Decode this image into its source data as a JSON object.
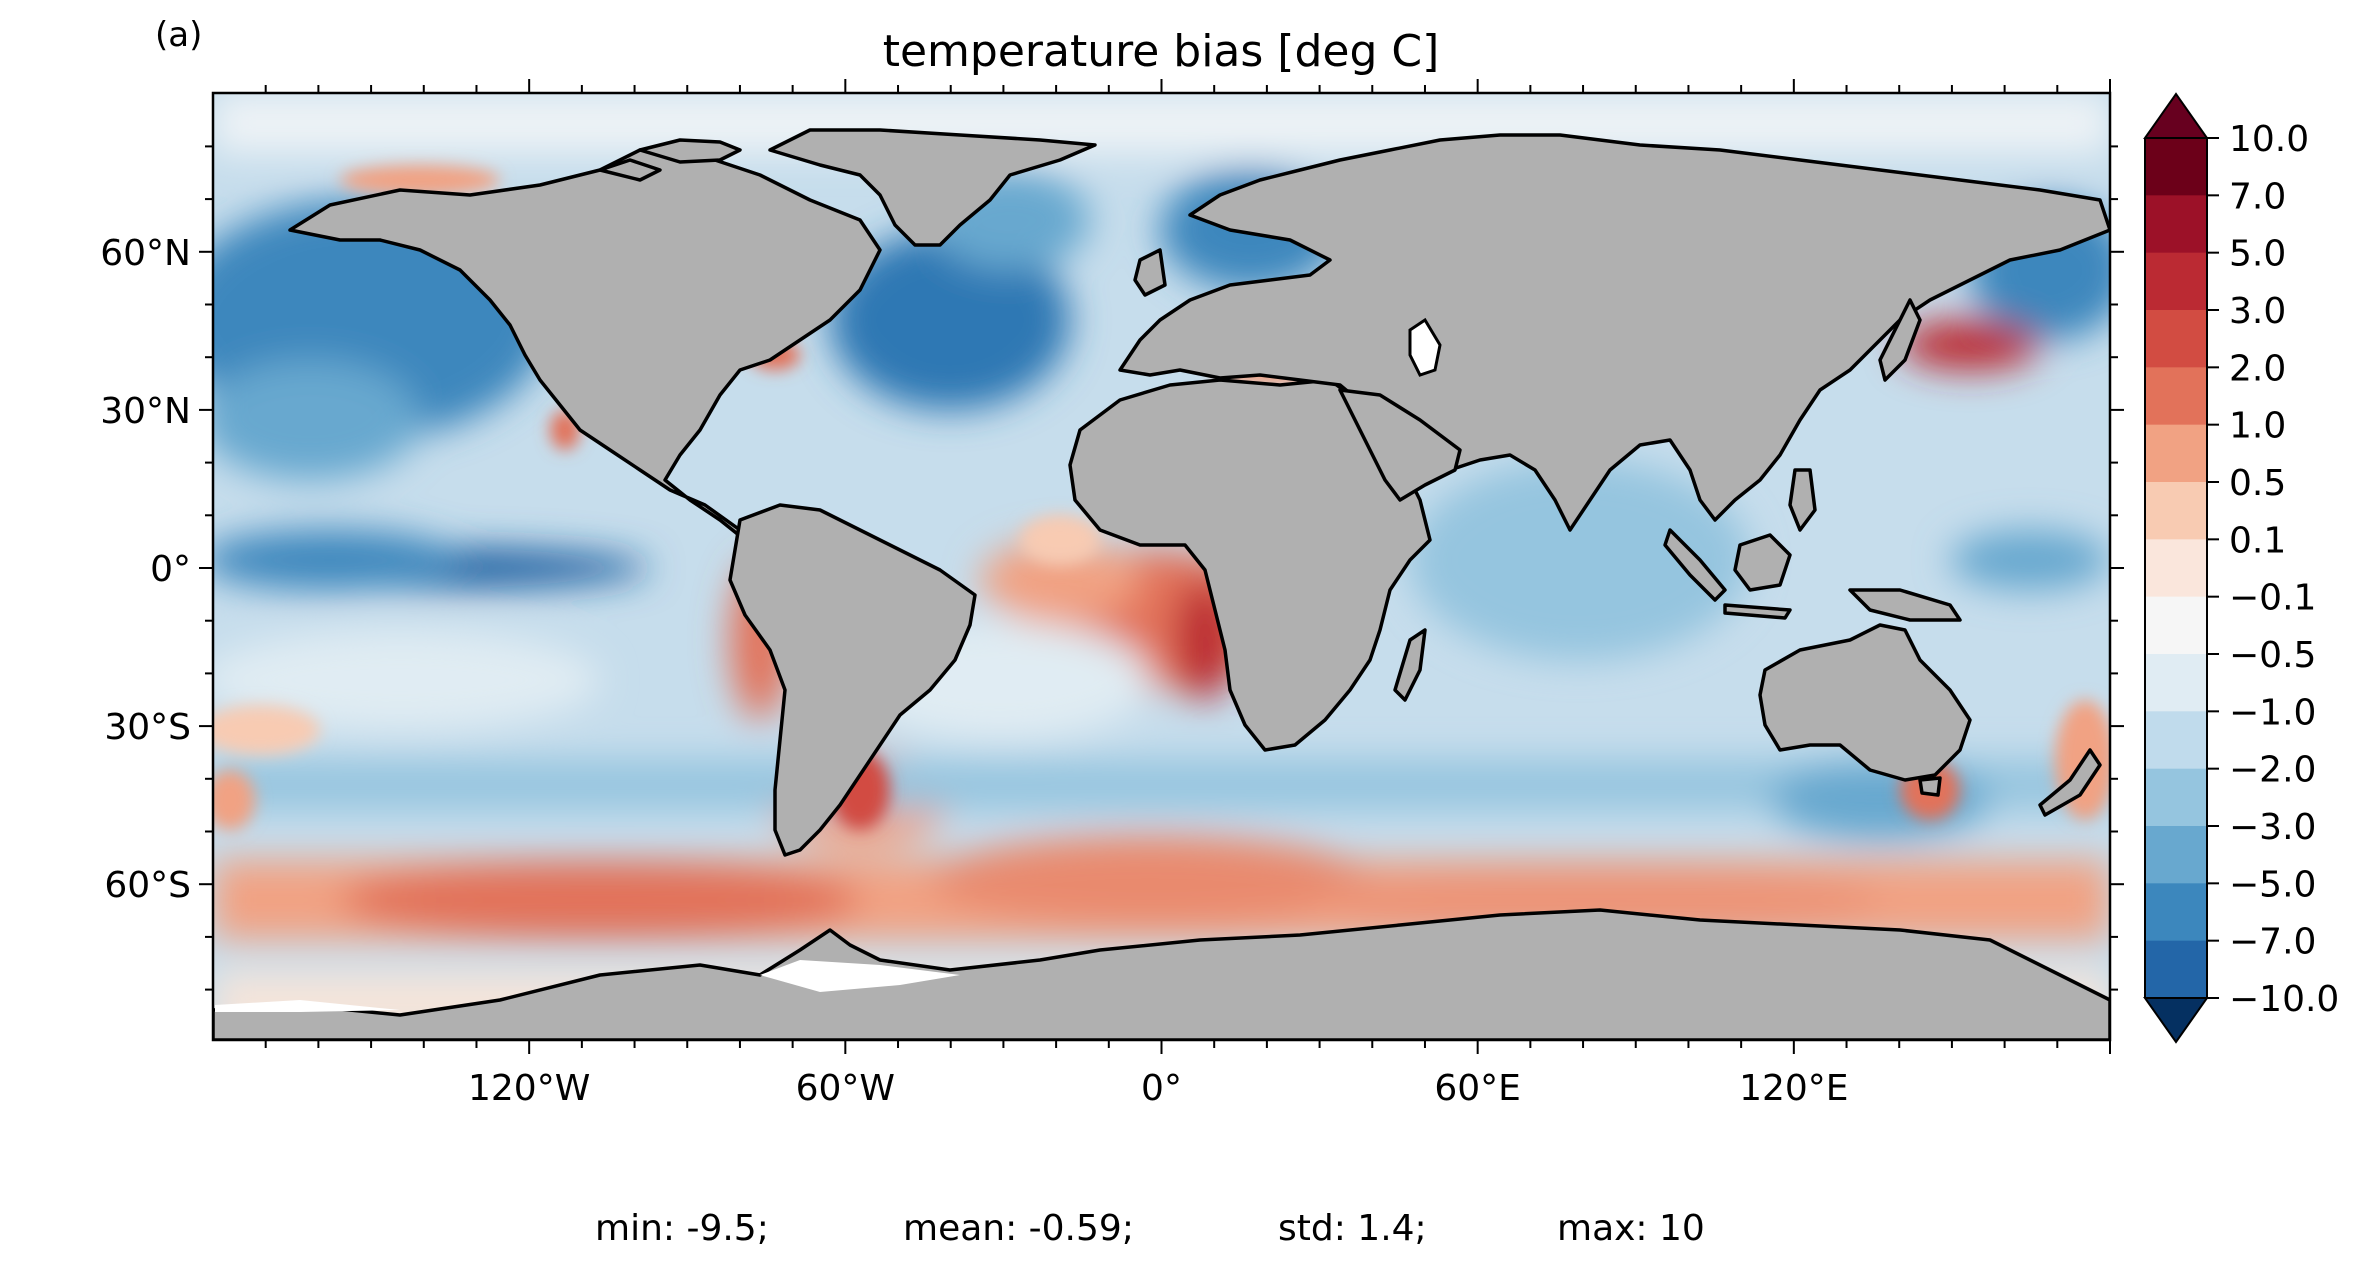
{
  "panel_label": "(a)",
  "title": "temperature bias [deg C]",
  "lat_ticks": [
    {
      "value": 60,
      "label": "60°N"
    },
    {
      "value": 30,
      "label": "30°N"
    },
    {
      "value": 0,
      "label": "0°"
    },
    {
      "value": -30,
      "label": "30°S"
    },
    {
      "value": -60,
      "label": "60°S"
    }
  ],
  "lon_ticks": [
    {
      "value": -120,
      "label": "120°W"
    },
    {
      "value": -60,
      "label": "60°W"
    },
    {
      "value": 0,
      "label": "0°"
    },
    {
      "value": 60,
      "label": "60°E"
    },
    {
      "value": 120,
      "label": "120°E"
    }
  ],
  "colorbar": {
    "levels": [
      "10.0",
      "7.0",
      "5.0",
      "3.0",
      "2.0",
      "1.0",
      "0.5",
      "0.1",
      "−0.1",
      "−0.5",
      "−1.0",
      "−2.0",
      "−3.0",
      "−5.0",
      "−7.0",
      "−10.0"
    ],
    "colors": [
      "#6c0019",
      "#9c1128",
      "#bb2a33",
      "#d24c42",
      "#e2725a",
      "#f1a283",
      "#f8cbb2",
      "#fae6dc",
      "#f6f6f6",
      "#e0ecf3",
      "#c0dbec",
      "#95c5df",
      "#68a8cf",
      "#3c87bd",
      "#2366a8",
      "#0d4a8a"
    ],
    "over_color": "#67001f",
    "under_color": "#053061"
  },
  "stats": {
    "min": "min: -9.5;",
    "mean": "mean: -0.59;",
    "std": "std: 1.4;",
    "max": "max: 10"
  },
  "colors": {
    "land": "#b0b0b0",
    "coast": "#000000"
  }
}
